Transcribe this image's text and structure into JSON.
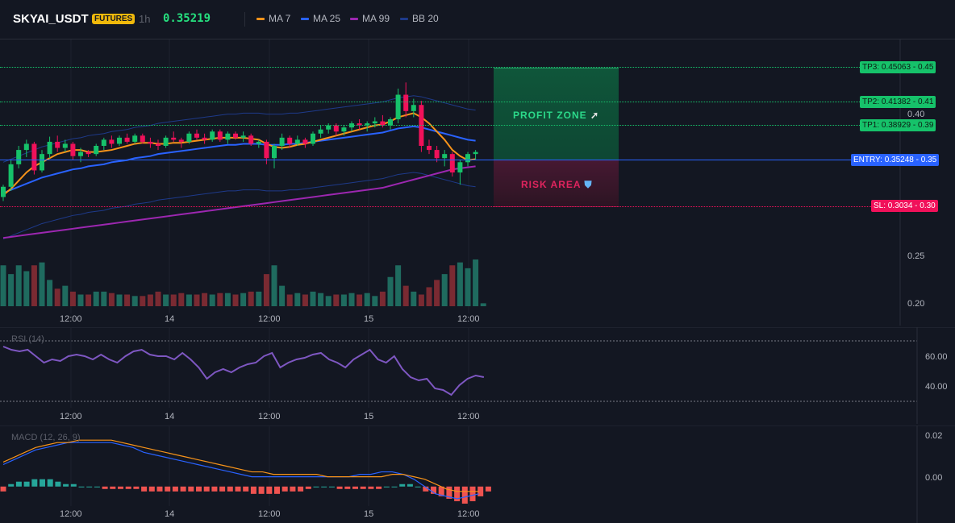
{
  "header": {
    "symbol": "SKYAI_USDT",
    "badge": "FUTURES",
    "timeframe": "1h",
    "price": "0.35219",
    "legend": [
      {
        "label": "MA 7",
        "color": "#f7931a"
      },
      {
        "label": "MA 25",
        "color": "#2962ff"
      },
      {
        "label": "MA 99",
        "color": "#9c27b0"
      },
      {
        "label": "BB 20",
        "color": "#1e3a8a"
      }
    ]
  },
  "trade": {
    "tp3": "TP3: 0.45063",
    "tp3_axis": "0.45",
    "tp2": "TP2: 0.41382",
    "tp2_axis": "0.41",
    "tp1": "TP1: 0.38929",
    "tp1_axis": "0.39",
    "entry": "ENTRY: 0.35248",
    "entry_axis": "0.35",
    "sl": "SL: 0.3034",
    "sl_axis": "0.30",
    "profit_zone": "PROFIT ZONE",
    "risk_area": "RISK AREA"
  },
  "price_axis": [
    "0.40",
    "0.25",
    "0.20"
  ],
  "time_axis": [
    "12:00",
    "14",
    "12:00",
    "15",
    "12:00"
  ],
  "rsi": {
    "title": "RSI (14)",
    "axis": [
      "60.00",
      "40.00"
    ]
  },
  "macd": {
    "title": "MACD (12, 26, 9)",
    "axis": [
      "0.02",
      "0.00"
    ]
  },
  "colors": {
    "up": "#26a69a",
    "down": "#ef5350",
    "bright_up": "#16c26a",
    "bright_down": "#f0115a",
    "rsi_line": "#7e57c2"
  },
  "chart_data": {
    "type": "candlestick",
    "price_range": [
      0.2,
      0.46
    ],
    "candles": [
      {
        "o": 0.306,
        "h": 0.318,
        "l": 0.302,
        "c": 0.316
      },
      {
        "o": 0.316,
        "h": 0.342,
        "l": 0.312,
        "c": 0.338
      },
      {
        "o": 0.338,
        "h": 0.356,
        "l": 0.334,
        "c": 0.352
      },
      {
        "o": 0.352,
        "h": 0.362,
        "l": 0.345,
        "c": 0.358
      },
      {
        "o": 0.358,
        "h": 0.36,
        "l": 0.328,
        "c": 0.332
      },
      {
        "o": 0.332,
        "h": 0.352,
        "l": 0.33,
        "c": 0.348
      },
      {
        "o": 0.348,
        "h": 0.365,
        "l": 0.344,
        "c": 0.36
      },
      {
        "o": 0.36,
        "h": 0.366,
        "l": 0.35,
        "c": 0.354
      },
      {
        "o": 0.354,
        "h": 0.362,
        "l": 0.35,
        "c": 0.358
      },
      {
        "o": 0.358,
        "h": 0.36,
        "l": 0.342,
        "c": 0.346
      },
      {
        "o": 0.346,
        "h": 0.354,
        "l": 0.34,
        "c": 0.35
      },
      {
        "o": 0.35,
        "h": 0.352,
        "l": 0.345,
        "c": 0.348
      },
      {
        "o": 0.348,
        "h": 0.358,
        "l": 0.346,
        "c": 0.356
      },
      {
        "o": 0.356,
        "h": 0.364,
        "l": 0.352,
        "c": 0.362
      },
      {
        "o": 0.362,
        "h": 0.366,
        "l": 0.354,
        "c": 0.358
      },
      {
        "o": 0.358,
        "h": 0.366,
        "l": 0.356,
        "c": 0.364
      },
      {
        "o": 0.364,
        "h": 0.368,
        "l": 0.358,
        "c": 0.36
      },
      {
        "o": 0.36,
        "h": 0.368,
        "l": 0.358,
        "c": 0.366
      },
      {
        "o": 0.366,
        "h": 0.368,
        "l": 0.358,
        "c": 0.36
      },
      {
        "o": 0.36,
        "h": 0.364,
        "l": 0.354,
        "c": 0.358
      },
      {
        "o": 0.358,
        "h": 0.362,
        "l": 0.352,
        "c": 0.356
      },
      {
        "o": 0.356,
        "h": 0.366,
        "l": 0.354,
        "c": 0.364
      },
      {
        "o": 0.364,
        "h": 0.37,
        "l": 0.36,
        "c": 0.362
      },
      {
        "o": 0.362,
        "h": 0.364,
        "l": 0.354,
        "c": 0.36
      },
      {
        "o": 0.36,
        "h": 0.37,
        "l": 0.358,
        "c": 0.368
      },
      {
        "o": 0.368,
        "h": 0.372,
        "l": 0.362,
        "c": 0.364
      },
      {
        "o": 0.364,
        "h": 0.368,
        "l": 0.358,
        "c": 0.362
      },
      {
        "o": 0.362,
        "h": 0.372,
        "l": 0.36,
        "c": 0.37
      },
      {
        "o": 0.37,
        "h": 0.372,
        "l": 0.36,
        "c": 0.362
      },
      {
        "o": 0.362,
        "h": 0.37,
        "l": 0.358,
        "c": 0.368
      },
      {
        "o": 0.368,
        "h": 0.37,
        "l": 0.362,
        "c": 0.364
      },
      {
        "o": 0.364,
        "h": 0.37,
        "l": 0.36,
        "c": 0.366
      },
      {
        "o": 0.366,
        "h": 0.368,
        "l": 0.356,
        "c": 0.358
      },
      {
        "o": 0.358,
        "h": 0.362,
        "l": 0.354,
        "c": 0.36
      },
      {
        "o": 0.36,
        "h": 0.362,
        "l": 0.338,
        "c": 0.344
      },
      {
        "o": 0.344,
        "h": 0.358,
        "l": 0.334,
        "c": 0.356
      },
      {
        "o": 0.356,
        "h": 0.368,
        "l": 0.352,
        "c": 0.364
      },
      {
        "o": 0.364,
        "h": 0.366,
        "l": 0.354,
        "c": 0.358
      },
      {
        "o": 0.358,
        "h": 0.366,
        "l": 0.356,
        "c": 0.362
      },
      {
        "o": 0.362,
        "h": 0.364,
        "l": 0.354,
        "c": 0.358
      },
      {
        "o": 0.358,
        "h": 0.37,
        "l": 0.356,
        "c": 0.368
      },
      {
        "o": 0.368,
        "h": 0.376,
        "l": 0.364,
        "c": 0.372
      },
      {
        "o": 0.372,
        "h": 0.378,
        "l": 0.368,
        "c": 0.376
      },
      {
        "o": 0.376,
        "h": 0.378,
        "l": 0.366,
        "c": 0.37
      },
      {
        "o": 0.37,
        "h": 0.376,
        "l": 0.366,
        "c": 0.374
      },
      {
        "o": 0.374,
        "h": 0.38,
        "l": 0.37,
        "c": 0.378
      },
      {
        "o": 0.378,
        "h": 0.382,
        "l": 0.372,
        "c": 0.376
      },
      {
        "o": 0.376,
        "h": 0.38,
        "l": 0.37,
        "c": 0.378
      },
      {
        "o": 0.378,
        "h": 0.384,
        "l": 0.374,
        "c": 0.38
      },
      {
        "o": 0.38,
        "h": 0.386,
        "l": 0.374,
        "c": 0.376
      },
      {
        "o": 0.376,
        "h": 0.384,
        "l": 0.372,
        "c": 0.382
      },
      {
        "o": 0.382,
        "h": 0.412,
        "l": 0.378,
        "c": 0.406
      },
      {
        "o": 0.406,
        "h": 0.418,
        "l": 0.384,
        "c": 0.39
      },
      {
        "o": 0.39,
        "h": 0.402,
        "l": 0.384,
        "c": 0.396
      },
      {
        "o": 0.396,
        "h": 0.4,
        "l": 0.35,
        "c": 0.356
      },
      {
        "o": 0.356,
        "h": 0.362,
        "l": 0.348,
        "c": 0.352
      },
      {
        "o": 0.352,
        "h": 0.356,
        "l": 0.34,
        "c": 0.344
      },
      {
        "o": 0.344,
        "h": 0.352,
        "l": 0.336,
        "c": 0.348
      },
      {
        "o": 0.348,
        "h": 0.35,
        "l": 0.326,
        "c": 0.33
      },
      {
        "o": 0.33,
        "h": 0.342,
        "l": 0.318,
        "c": 0.34
      },
      {
        "o": 0.34,
        "h": 0.35,
        "l": 0.336,
        "c": 0.348
      },
      {
        "o": 0.348,
        "h": 0.352,
        "l": 0.342,
        "c": 0.35
      }
    ],
    "volume": [
      28,
      22,
      28,
      24,
      28,
      30,
      18,
      12,
      14,
      10,
      8,
      8,
      10,
      10,
      9,
      8,
      8,
      7,
      7,
      8,
      10,
      8,
      8,
      9,
      8,
      8,
      9,
      8,
      9,
      9,
      8,
      9,
      10,
      10,
      22,
      28,
      14,
      8,
      9,
      8,
      10,
      9,
      7,
      8,
      8,
      9,
      8,
      9,
      7,
      10,
      20,
      28,
      14,
      10,
      8,
      13,
      18,
      22,
      28,
      30,
      26,
      32,
      2
    ],
    "ma7": [
      0.308,
      0.314,
      0.322,
      0.33,
      0.336,
      0.34,
      0.344,
      0.348,
      0.35,
      0.352,
      0.352,
      0.35,
      0.35,
      0.351,
      0.352,
      0.354,
      0.356,
      0.358,
      0.359,
      0.359,
      0.358,
      0.358,
      0.359,
      0.359,
      0.36,
      0.361,
      0.362,
      0.363,
      0.364,
      0.364,
      0.364,
      0.364,
      0.363,
      0.362,
      0.358,
      0.355,
      0.354,
      0.355,
      0.357,
      0.358,
      0.36,
      0.362,
      0.364,
      0.366,
      0.368,
      0.37,
      0.372,
      0.374,
      0.376,
      0.377,
      0.38,
      0.384,
      0.386,
      0.388,
      0.384,
      0.378,
      0.37,
      0.362,
      0.352,
      0.346,
      0.342,
      0.343
    ],
    "ma25": [
      0.31,
      0.313,
      0.316,
      0.319,
      0.322,
      0.325,
      0.327,
      0.329,
      0.331,
      0.333,
      0.334,
      0.336,
      0.337,
      0.338,
      0.34,
      0.341,
      0.342,
      0.344,
      0.345,
      0.346,
      0.348,
      0.349,
      0.35,
      0.351,
      0.352,
      0.353,
      0.354,
      0.355,
      0.356,
      0.357,
      0.357,
      0.358,
      0.358,
      0.358,
      0.357,
      0.357,
      0.357,
      0.358,
      0.358,
      0.359,
      0.36,
      0.361,
      0.362,
      0.363,
      0.364,
      0.365,
      0.366,
      0.367,
      0.368,
      0.369,
      0.371,
      0.373,
      0.374,
      0.375,
      0.374,
      0.372,
      0.37,
      0.368,
      0.366,
      0.364,
      0.362,
      0.361
    ],
    "ma99": [
      0.266,
      0.267,
      0.268,
      0.269,
      0.27,
      0.271,
      0.272,
      0.273,
      0.274,
      0.275,
      0.276,
      0.277,
      0.278,
      0.279,
      0.28,
      0.281,
      0.282,
      0.283,
      0.284,
      0.285,
      0.286,
      0.287,
      0.288,
      0.289,
      0.29,
      0.291,
      0.292,
      0.293,
      0.294,
      0.295,
      0.296,
      0.297,
      0.298,
      0.299,
      0.3,
      0.301,
      0.302,
      0.303,
      0.304,
      0.305,
      0.306,
      0.307,
      0.308,
      0.309,
      0.31,
      0.311,
      0.312,
      0.313,
      0.314,
      0.315,
      0.317,
      0.319,
      0.321,
      0.323,
      0.325,
      0.327,
      0.329,
      0.331,
      0.333,
      0.334,
      0.335,
      0.336
    ],
    "rsi": [
      68,
      66,
      65,
      66,
      62,
      58,
      60,
      59,
      62,
      63,
      62,
      60,
      63,
      60,
      58,
      62,
      65,
      66,
      63,
      62,
      62,
      60,
      64,
      60,
      55,
      48,
      52,
      54,
      52,
      55,
      57,
      58,
      62,
      64,
      55,
      58,
      60,
      61,
      63,
      64,
      60,
      58,
      55,
      60,
      63,
      66,
      60,
      58,
      62,
      54,
      49,
      47,
      48,
      42,
      41,
      38,
      44,
      48,
      50,
      49
    ],
    "rsi_range": [
      30,
      80
    ],
    "macd_hist": [
      -0.002,
      0.001,
      0.002,
      0.002,
      0.003,
      0.003,
      0.003,
      0.002,
      0.001,
      0.001,
      0.0,
      0.0,
      0.0,
      -0.001,
      -0.001,
      -0.001,
      -0.001,
      -0.001,
      -0.002,
      -0.002,
      -0.002,
      -0.002,
      -0.002,
      -0.002,
      -0.002,
      -0.002,
      -0.002,
      -0.002,
      -0.002,
      -0.002,
      -0.002,
      -0.002,
      -0.003,
      -0.003,
      -0.003,
      -0.003,
      -0.002,
      -0.002,
      -0.002,
      -0.001,
      0.0,
      0.0,
      0.0,
      -0.001,
      -0.001,
      -0.001,
      -0.001,
      -0.001,
      -0.001,
      0.0,
      0.0,
      0.001,
      0.001,
      0.0,
      -0.002,
      -0.003,
      -0.004,
      -0.005,
      -0.006,
      -0.007,
      -0.006,
      -0.004,
      -0.002
    ],
    "macd_line": [
      0.009,
      0.011,
      0.013,
      0.015,
      0.016,
      0.017,
      0.018,
      0.018,
      0.018,
      0.018,
      0.018,
      0.017,
      0.016,
      0.014,
      0.013,
      0.012,
      0.011,
      0.01,
      0.009,
      0.008,
      0.007,
      0.006,
      0.005,
      0.004,
      0.004,
      0.004,
      0.004,
      0.004,
      0.004,
      0.004,
      0.004,
      0.004,
      0.004,
      0.005,
      0.005,
      0.006,
      0.006,
      0.005,
      0.003,
      0.0,
      -0.003,
      -0.004,
      -0.005,
      -0.004,
      -0.003
    ],
    "signal_line": [
      0.01,
      0.012,
      0.014,
      0.016,
      0.017,
      0.018,
      0.018,
      0.019,
      0.019,
      0.019,
      0.019,
      0.018,
      0.017,
      0.016,
      0.015,
      0.014,
      0.013,
      0.012,
      0.011,
      0.01,
      0.009,
      0.008,
      0.007,
      0.006,
      0.006,
      0.005,
      0.005,
      0.005,
      0.005,
      0.005,
      0.004,
      0.004,
      0.004,
      0.004,
      0.004,
      0.004,
      0.005,
      0.005,
      0.004,
      0.003,
      0.001,
      -0.001,
      -0.002,
      -0.002,
      -0.002
    ],
    "macd_range": [
      -0.008,
      0.025
    ]
  }
}
